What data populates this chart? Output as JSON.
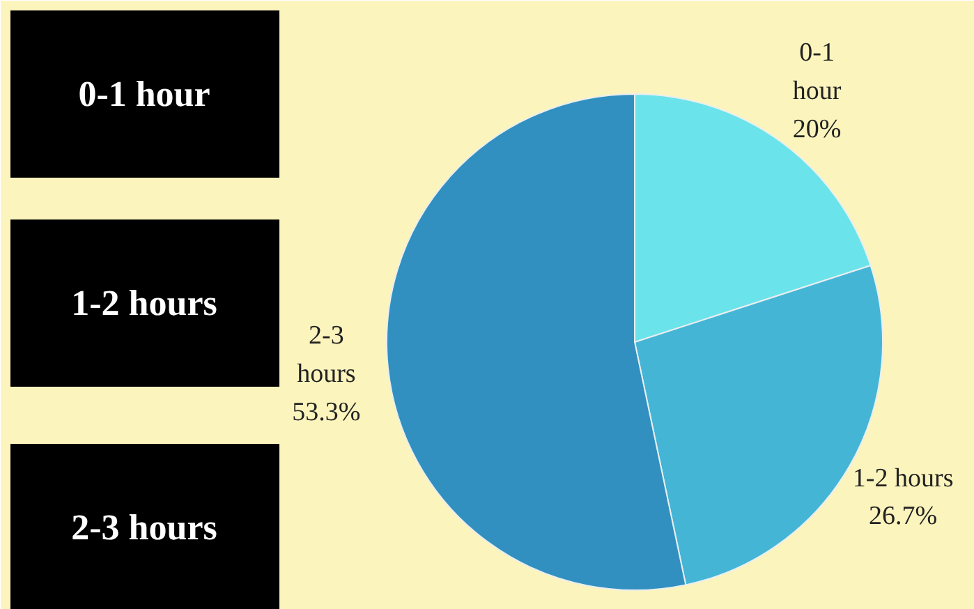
{
  "chart_data": {
    "type": "pie",
    "categories": [
      "0-1\nhour",
      "1-2 hours",
      "2-3\nhours"
    ],
    "values": [
      20,
      26.7,
      53.3
    ],
    "colors": [
      "#6ae3ea",
      "#45b5d6",
      "#3190bf"
    ],
    "value_labels": [
      "20%",
      "26.7%",
      "53.3%"
    ],
    "annotations": [
      "0-1 hour",
      "1-2 hours",
      "2-3 hours"
    ]
  }
}
